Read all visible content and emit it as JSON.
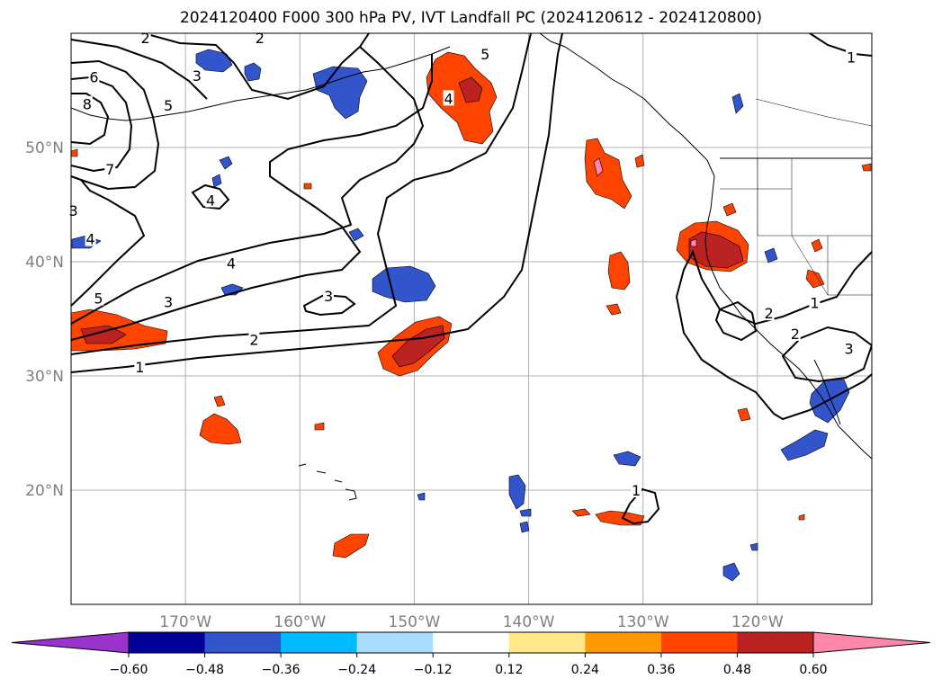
{
  "title": "2024120400 F000 300 hPa PV, IVT Landfall PC (2024120612 - 2024120800)",
  "map": {
    "lat_range": [
      10,
      60
    ],
    "lon_range": [
      -180,
      -110
    ],
    "lat_ticks": [
      {
        "lat": 20,
        "label": "20°N"
      },
      {
        "lat": 30,
        "label": "30°N"
      },
      {
        "lat": 40,
        "label": "40°N"
      },
      {
        "lat": 50,
        "label": "50°N"
      }
    ],
    "lon_ticks": [
      {
        "lon": -170,
        "label": "170°W"
      },
      {
        "lon": -160,
        "label": "160°W"
      },
      {
        "lon": -150,
        "label": "150°W"
      },
      {
        "lon": -140,
        "label": "140°W"
      },
      {
        "lon": -130,
        "label": "130°W"
      },
      {
        "lon": -120,
        "label": "120°W"
      }
    ],
    "gridlines": true,
    "contour_labels": [
      {
        "text": "1",
        "lon": -174,
        "lat": 30.8
      },
      {
        "text": "2",
        "lon": -164,
        "lat": 33.2
      },
      {
        "text": "3",
        "lon": -171.5,
        "lat": 36.5
      },
      {
        "text": "3",
        "lon": -157.5,
        "lat": 37.0
      },
      {
        "text": "4",
        "lon": -166,
        "lat": 39.9
      },
      {
        "text": "5",
        "lon": -177.6,
        "lat": 36.8
      },
      {
        "text": "7",
        "lon": -176.6,
        "lat": 48.1
      },
      {
        "text": "8",
        "lon": -178.6,
        "lat": 53.8
      },
      {
        "text": "6",
        "lon": -178.0,
        "lat": 56.2
      },
      {
        "text": "5",
        "lon": -171.5,
        "lat": 53.7
      },
      {
        "text": "3",
        "lon": -169.0,
        "lat": 56.3
      },
      {
        "text": "4",
        "lon": -178.3,
        "lat": 42.0
      },
      {
        "text": "4",
        "lon": -167.8,
        "lat": 45.4
      },
      {
        "text": "3",
        "lon": -179.8,
        "lat": 44.5
      },
      {
        "text": "2",
        "lon": -173.5,
        "lat": 59.6
      },
      {
        "text": "2",
        "lon": -163.5,
        "lat": 59.6
      },
      {
        "text": "4",
        "lon": -147.0,
        "lat": 54.3
      },
      {
        "text": "5",
        "lon": -143.8,
        "lat": 58.2
      },
      {
        "text": "1",
        "lon": -111.8,
        "lat": 57.9
      },
      {
        "text": "1",
        "lon": -130.6,
        "lat": 20.0
      },
      {
        "text": "2",
        "lon": -119.0,
        "lat": 35.5
      },
      {
        "text": "2",
        "lon": -116.7,
        "lat": 33.7
      },
      {
        "text": "1",
        "lon": -115.0,
        "lat": 36.4
      },
      {
        "text": "3",
        "lon": -112.0,
        "lat": 32.4
      }
    ]
  },
  "colorbar": {
    "boundaries": [
      -0.72,
      -0.6,
      -0.48,
      -0.36,
      -0.24,
      -0.12,
      0.12,
      0.24,
      0.36,
      0.48,
      0.6,
      0.72
    ],
    "tick_labels": [
      "−0.60",
      "−0.48",
      "−0.36",
      "−0.24",
      "−0.12",
      "0.12",
      "0.24",
      "0.36",
      "0.48",
      "0.60"
    ],
    "under_color": "#9933cc",
    "over_color": "#ff88aa",
    "colors": [
      "#9933cc",
      "#000099",
      "#3355cc",
      "#00bbff",
      "#aaddff",
      "#ffffff",
      "#ffe88a",
      "#ff9900",
      "#ff4400",
      "#bb2222",
      "#ff88aa"
    ]
  }
}
